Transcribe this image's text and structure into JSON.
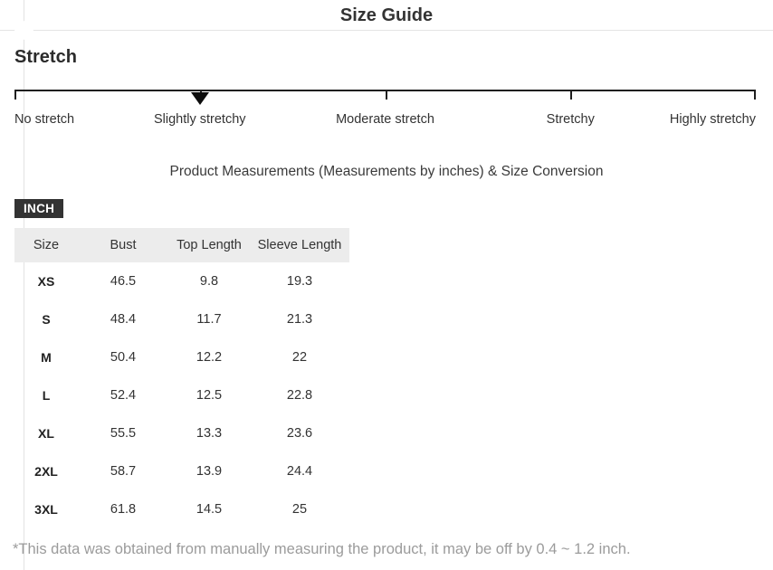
{
  "header": {
    "title": "Size Guide"
  },
  "stretch_scale": {
    "section_title": "Stretch",
    "labels": [
      "No stretch",
      "Slightly stretchy",
      "Moderate stretch",
      "Stretchy",
      "Highly stretchy"
    ],
    "selected_index": 1,
    "selected_label": "Slightly stretchy"
  },
  "measurements": {
    "heading": "Product Measurements (Measurements by inches) & Size Conversion",
    "unit_badge": "INCH",
    "table": {
      "columns": [
        "Size",
        "Bust",
        "Top Length",
        "Sleeve Length"
      ],
      "rows": [
        {
          "size": "XS",
          "bust": "46.5",
          "top_length": "9.8",
          "sleeve_length": "19.3"
        },
        {
          "size": "S",
          "bust": "48.4",
          "top_length": "11.7",
          "sleeve_length": "21.3"
        },
        {
          "size": "M",
          "bust": "50.4",
          "top_length": "12.2",
          "sleeve_length": "22"
        },
        {
          "size": "L",
          "bust": "52.4",
          "top_length": "12.5",
          "sleeve_length": "22.8"
        },
        {
          "size": "XL",
          "bust": "55.5",
          "top_length": "13.3",
          "sleeve_length": "23.6"
        },
        {
          "size": "2XL",
          "bust": "58.7",
          "top_length": "13.9",
          "sleeve_length": "24.4"
        },
        {
          "size": "3XL",
          "bust": "61.8",
          "top_length": "14.5",
          "sleeve_length": "25"
        }
      ]
    },
    "footnote": "*This data was obtained from manually measuring the product, it may be off by 0.4 ~ 1.2 inch."
  },
  "colors": {
    "badge_background": "#333333",
    "badge_text": "#ffffff",
    "table_header_band": "#ececec",
    "scale_line": "#1f1f1f",
    "text_dark": "#333333",
    "footnote_gray": "#9b9b9b",
    "divider": "#e5e5e5"
  }
}
